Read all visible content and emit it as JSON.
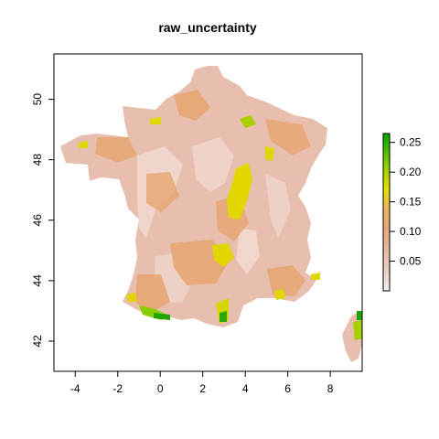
{
  "chart_data": {
    "type": "heatmap",
    "title": "raw_uncertainty",
    "xlabel": "",
    "ylabel": "",
    "xlim": [
      -5,
      9.5
    ],
    "ylim": [
      41,
      51.5
    ],
    "x_ticks": [
      "-4",
      "-2",
      "0",
      "2",
      "4",
      "6",
      "8"
    ],
    "y_ticks": [
      "42",
      "44",
      "46",
      "48",
      "50"
    ],
    "legend": {
      "placement": "right",
      "range": [
        0.0,
        0.265
      ],
      "ticks": [
        "0.05",
        "0.10",
        "0.15",
        "0.20",
        "0.25"
      ],
      "colors": [
        "#f2f2f2",
        "#e8c0b0",
        "#e9a276",
        "#e6b96a",
        "#e6e100",
        "#8ccc00",
        "#00a600"
      ]
    },
    "grid": false,
    "region": "France (mainland and Corsica)"
  }
}
